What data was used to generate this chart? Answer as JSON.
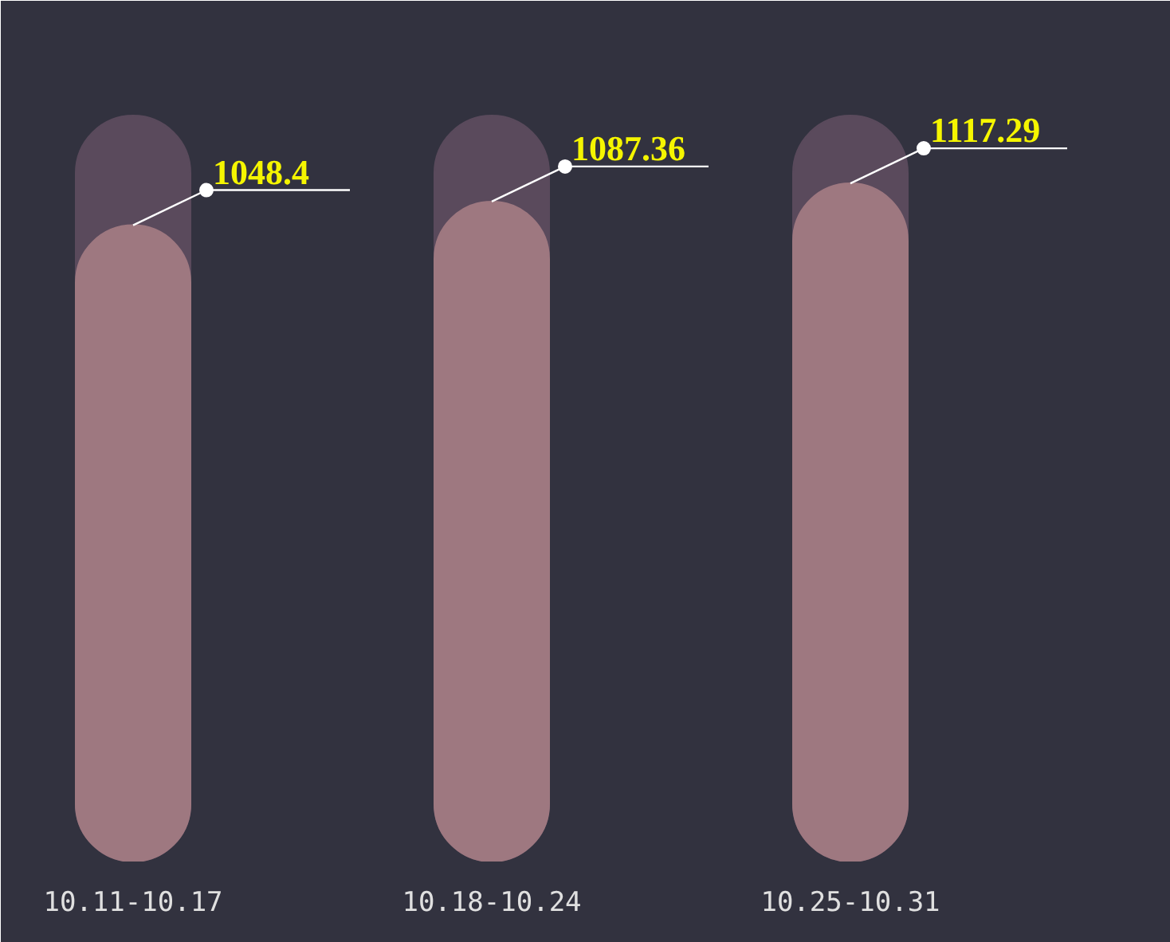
{
  "chart_data": {
    "type": "bar",
    "categories": [
      "10.11-10.17",
      "10.18-10.24",
      "10.25-10.31"
    ],
    "values": [
      1048.4,
      1087.36,
      1117.29
    ],
    "color": "#9e7880",
    "grid": false,
    "data_labels": true
  }
}
